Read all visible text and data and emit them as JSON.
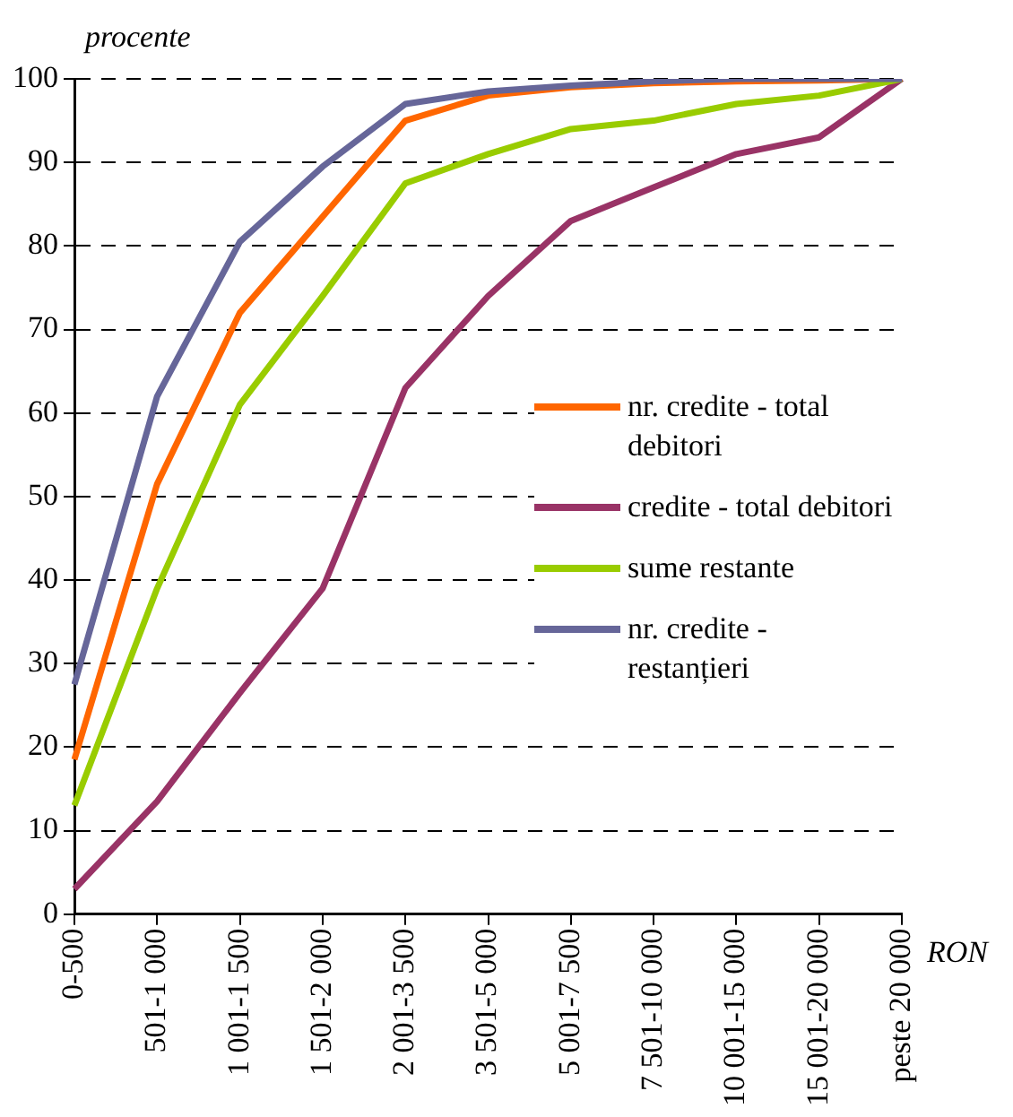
{
  "chart_data": {
    "type": "line",
    "ylabel": "procente",
    "xlabel": "RON",
    "categories": [
      "0-500",
      "501-1 000",
      "1 001-1 500",
      "1 501-2 000",
      "2 001-3 500",
      "3 501-5 000",
      "5 001-7 500",
      "7 501-10 000",
      "10 001-15 000",
      "15 001-20 000",
      "peste 20 000"
    ],
    "series": [
      {
        "name": "nr. credite - total debitori",
        "color": "#ff6600",
        "values": [
          18.5,
          51.5,
          72,
          83.5,
          95,
          98,
          99,
          99.5,
          99.7,
          99.8,
          100
        ]
      },
      {
        "name": "credite - total debitori",
        "color": "#993366",
        "values": [
          3,
          13.5,
          26.5,
          39,
          63,
          74,
          83,
          87,
          91,
          93,
          100
        ]
      },
      {
        "name": "sume restante",
        "color": "#99cc00",
        "values": [
          13,
          39,
          61,
          74,
          87.5,
          91,
          94,
          95,
          97,
          98,
          100
        ]
      },
      {
        "name": "nr. credite - restanțieri",
        "color": "#666699",
        "values": [
          27.5,
          62,
          80.5,
          89.5,
          97,
          98.5,
          99.2,
          99.7,
          100,
          100,
          100
        ]
      }
    ],
    "ylim": [
      0,
      100
    ],
    "yticks": [
      0,
      10,
      20,
      30,
      40,
      50,
      60,
      70,
      80,
      90,
      100
    ],
    "grid": "y",
    "legend": "right",
    "marker": "none",
    "line_style": "solid"
  }
}
